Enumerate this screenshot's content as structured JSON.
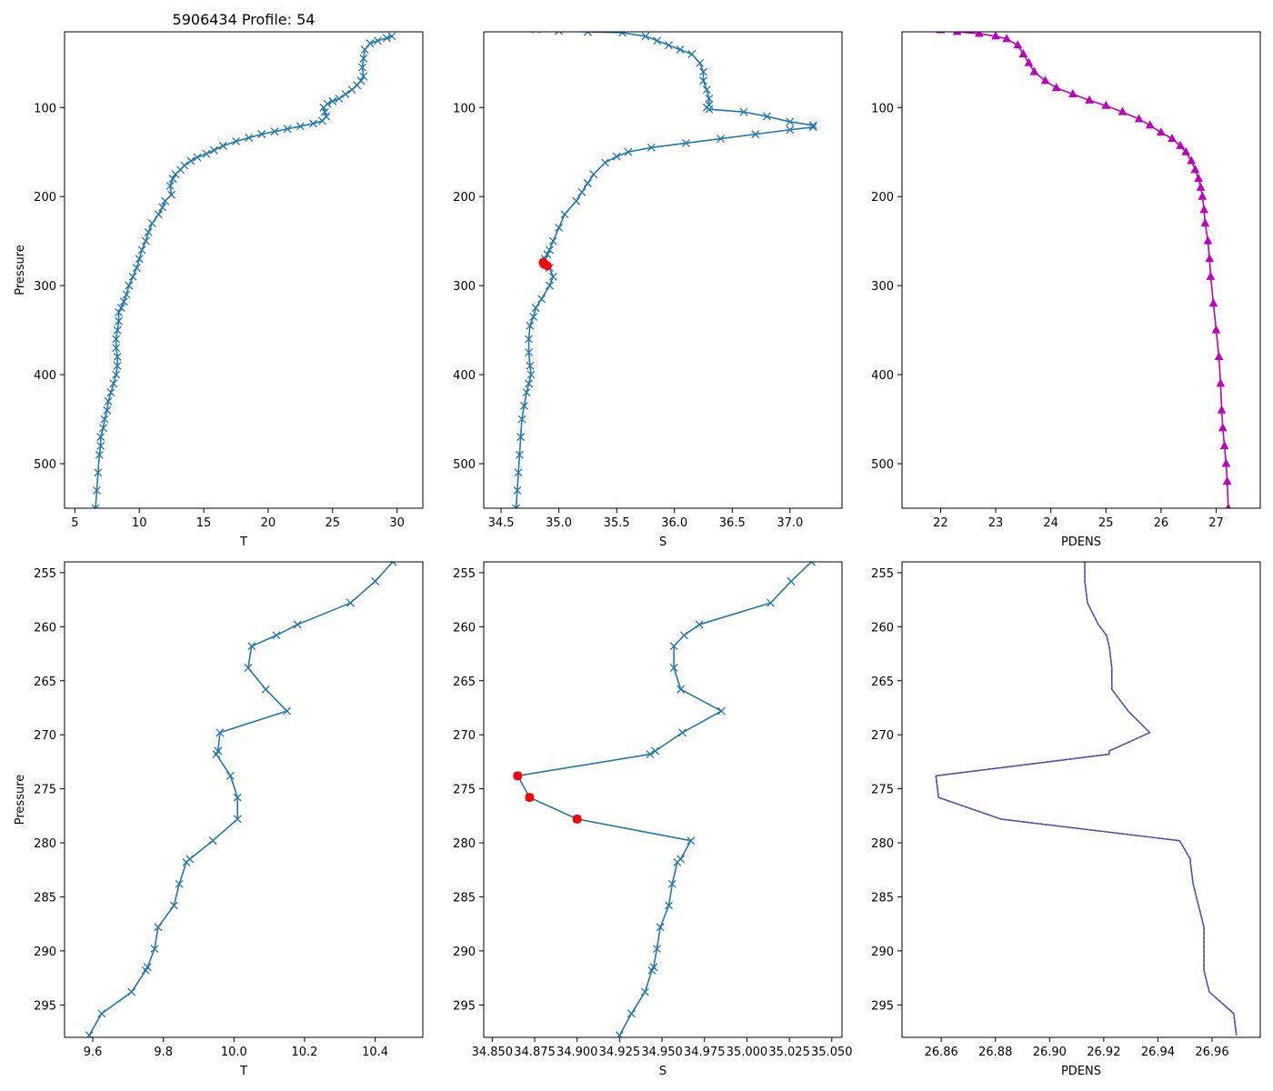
{
  "figure_title": "5906434 Profile: 54",
  "colors": {
    "line": "#1f77b4",
    "flag": "#ff0000",
    "density": "#bf00bf"
  },
  "chart_data": [
    {
      "id": "top-temperature",
      "type": "line",
      "xlabel": "T",
      "ylabel": "Pressure",
      "xlim": [
        4.2,
        32.0
      ],
      "ylim": [
        550,
        15
      ],
      "y_inverted": true,
      "xticks": [
        5,
        10,
        15,
        20,
        25,
        30
      ],
      "yticks": [
        100,
        200,
        300,
        400,
        500
      ],
      "marker": "x",
      "marker_color": "line",
      "series": [
        {
          "name": "T",
          "x": [
            29.6,
            29.2,
            28.5,
            27.9,
            27.5,
            27.4,
            27.3,
            27.4,
            27.2,
            26.9,
            26.5,
            26.0,
            25.5,
            25.0,
            24.6,
            24.3,
            24.4,
            24.5,
            24.2,
            23.5,
            22.5,
            21.5,
            20.5,
            19.5,
            18.5,
            17.5,
            16.5,
            15.8,
            15.2,
            14.5,
            14.0,
            13.5,
            13.2,
            12.8,
            12.6,
            12.4,
            12.5,
            12.0,
            11.8,
            11.5,
            11.0,
            10.7,
            10.5,
            10.2,
            10.0,
            9.8,
            9.5,
            9.2,
            9.0,
            8.8,
            8.6,
            8.4,
            8.4,
            8.3,
            8.2,
            8.2,
            8.3,
            8.3,
            8.2,
            8.0,
            7.8,
            7.6,
            7.5,
            7.3,
            7.2,
            7.0,
            7.0,
            6.9,
            6.8,
            6.7,
            6.6
          ],
          "y": [
            20,
            22,
            25,
            28,
            35,
            45,
            55,
            65,
            70,
            75,
            80,
            85,
            90,
            93,
            96,
            100,
            105,
            110,
            115,
            118,
            121,
            124,
            127,
            130,
            134,
            138,
            143,
            148,
            152,
            156,
            160,
            165,
            170,
            175,
            180,
            188,
            198,
            205,
            212,
            220,
            230,
            240,
            250,
            260,
            270,
            280,
            290,
            300,
            310,
            318,
            325,
            330,
            340,
            350,
            360,
            370,
            380,
            390,
            400,
            410,
            420,
            430,
            440,
            450,
            460,
            470,
            480,
            490,
            510,
            530,
            550
          ]
        }
      ]
    },
    {
      "id": "top-salinity",
      "type": "line",
      "xlabel": "S",
      "ylabel": "",
      "xlim": [
        34.35,
        37.45
      ],
      "ylim": [
        550,
        15
      ],
      "y_inverted": true,
      "xticks": [
        34.5,
        35.0,
        35.5,
        36.0,
        36.5,
        37.0
      ],
      "xtick_labels": [
        "34.5",
        "35.0",
        "35.5",
        "36.0",
        "36.5",
        "37.0"
      ],
      "yticks": [
        100,
        200,
        300,
        400,
        500
      ],
      "marker": "x",
      "marker_color": "line",
      "series": [
        {
          "name": "S",
          "x": [
            34.8,
            35.0,
            35.25,
            35.55,
            35.75,
            35.85,
            35.95,
            36.05,
            36.15,
            36.22,
            36.25,
            36.25,
            36.28,
            36.3,
            36.3,
            36.28,
            36.3,
            36.6,
            36.8,
            37.0,
            37.2,
            37.2,
            37.0,
            36.7,
            36.4,
            36.1,
            35.8,
            35.6,
            35.5,
            35.4,
            35.3,
            35.25,
            35.2,
            35.15,
            35.05,
            35.0,
            34.95,
            34.92,
            34.9,
            34.88,
            34.92,
            34.95,
            34.92,
            34.85,
            34.8,
            34.78,
            34.75,
            34.74,
            34.74,
            34.75,
            34.76,
            34.74,
            34.72,
            34.7,
            34.68,
            34.67,
            34.66,
            34.65,
            34.64,
            34.63
          ],
          "y": [
            12,
            14,
            15,
            16,
            20,
            25,
            30,
            35,
            40,
            50,
            60,
            70,
            80,
            90,
            97,
            100,
            102,
            105,
            110,
            116,
            120,
            122,
            125,
            130,
            135,
            140,
            145,
            150,
            155,
            162,
            175,
            185,
            195,
            205,
            220,
            235,
            250,
            260,
            265,
            270,
            280,
            290,
            300,
            315,
            325,
            335,
            345,
            360,
            375,
            390,
            400,
            410,
            420,
            435,
            450,
            470,
            490,
            510,
            530,
            550
          ]
        },
        {
          "name": "flagged",
          "marker": "o",
          "marker_color": "flag",
          "x": [
            34.865,
            34.872,
            34.9
          ],
          "y": [
            273.8,
            275.8,
            277.8
          ]
        }
      ]
    },
    {
      "id": "top-density",
      "type": "line",
      "xlabel": "PDENS",
      "ylabel": "",
      "xlim": [
        21.3,
        27.8
      ],
      "ylim": [
        550,
        15
      ],
      "y_inverted": true,
      "xticks": [
        22,
        23,
        24,
        25,
        26,
        27
      ],
      "yticks": [
        100,
        200,
        300,
        400,
        500
      ],
      "marker": "^",
      "marker_color": "density",
      "line_color": "density",
      "series": [
        {
          "name": "PDENS",
          "x": [
            21.8,
            22.0,
            22.3,
            22.7,
            23.0,
            23.2,
            23.4,
            23.5,
            23.6,
            23.7,
            23.9,
            24.1,
            24.4,
            24.7,
            25.0,
            25.3,
            25.6,
            25.8,
            26.0,
            26.2,
            26.35,
            26.45,
            26.55,
            26.62,
            26.68,
            26.72,
            26.75,
            26.78,
            26.8,
            26.85,
            26.88,
            26.9,
            26.95,
            27.0,
            27.05,
            27.08,
            27.1,
            27.12,
            27.15,
            27.18,
            27.2,
            27.22
          ],
          "y": [
            12,
            13,
            15,
            17,
            20,
            23,
            30,
            40,
            50,
            60,
            70,
            78,
            85,
            92,
            98,
            105,
            113,
            120,
            128,
            135,
            143,
            150,
            160,
            170,
            180,
            190,
            200,
            215,
            230,
            250,
            270,
            290,
            320,
            350,
            380,
            410,
            440,
            460,
            480,
            500,
            520,
            550
          ]
        }
      ]
    },
    {
      "id": "bottom-temperature",
      "type": "line",
      "xlabel": "T",
      "ylabel": "Pressure",
      "xlim": [
        9.52,
        10.535
      ],
      "ylim": [
        298,
        254
      ],
      "y_inverted": true,
      "xticks": [
        9.6,
        9.8,
        10.0,
        10.2,
        10.4
      ],
      "xtick_labels": [
        "9.6",
        "9.8",
        "10.0",
        "10.2",
        "10.4"
      ],
      "yticks": [
        255,
        260,
        265,
        270,
        275,
        280,
        285,
        290,
        295
      ],
      "marker": "x",
      "marker_color": "line",
      "series": [
        {
          "name": "T",
          "x": [
            10.45,
            10.4,
            10.33,
            10.18,
            10.12,
            10.05,
            10.04,
            10.09,
            10.15,
            9.96,
            9.955,
            9.95,
            9.99,
            10.01,
            10.01,
            9.94,
            9.875,
            9.865,
            9.845,
            9.83,
            9.785,
            9.775,
            9.755,
            9.75,
            9.71,
            9.625,
            9.59
          ],
          "y": [
            254.0,
            255.8,
            257.8,
            259.8,
            260.8,
            261.8,
            263.8,
            265.8,
            267.8,
            269.8,
            271.5,
            271.8,
            273.8,
            275.8,
            277.8,
            279.8,
            281.5,
            281.8,
            283.8,
            285.8,
            287.8,
            289.8,
            291.5,
            291.8,
            293.8,
            295.8,
            297.8
          ]
        }
      ]
    },
    {
      "id": "bottom-salinity",
      "type": "line",
      "xlabel": "S",
      "ylabel": "",
      "xlim": [
        34.845,
        35.056
      ],
      "ylim": [
        298,
        254
      ],
      "y_inverted": true,
      "xticks": [
        34.85,
        34.875,
        34.9,
        34.925,
        34.95,
        34.975,
        35.0,
        35.025,
        35.05
      ],
      "xtick_labels": [
        "34.850",
        "34.875",
        "34.900",
        "34.925",
        "34.950",
        "34.975",
        "35.000",
        "35.025",
        "35.050"
      ],
      "yticks": [
        255,
        260,
        265,
        270,
        275,
        280,
        285,
        290,
        295
      ],
      "marker": "x",
      "marker_color": "line",
      "series": [
        {
          "name": "S",
          "x": [
            35.038,
            35.026,
            35.014,
            34.972,
            34.963,
            34.957,
            34.957,
            34.961,
            34.985,
            34.962,
            34.946,
            34.943,
            34.865,
            34.872,
            34.9,
            34.967,
            34.961,
            34.959,
            34.956,
            34.954,
            34.949,
            34.947,
            34.945,
            34.944,
            34.94,
            34.932,
            34.925
          ],
          "y": [
            254.0,
            255.8,
            257.8,
            259.8,
            260.8,
            261.8,
            263.8,
            265.8,
            267.8,
            269.8,
            271.5,
            271.8,
            273.8,
            275.8,
            277.8,
            279.8,
            281.5,
            281.8,
            283.8,
            285.8,
            287.8,
            289.8,
            291.5,
            291.8,
            293.8,
            295.8,
            297.8
          ]
        },
        {
          "name": "flagged",
          "marker": "o",
          "marker_color": "flag",
          "x": [
            34.865,
            34.872,
            34.9
          ],
          "y": [
            273.8,
            275.8,
            277.8
          ]
        }
      ]
    },
    {
      "id": "bottom-density",
      "type": "line",
      "xlabel": "PDENS",
      "ylabel": "",
      "xlim": [
        26.8455,
        26.9778
      ],
      "ylim": [
        298,
        254
      ],
      "y_inverted": true,
      "xticks": [
        26.86,
        26.88,
        26.9,
        26.92,
        26.94,
        26.96
      ],
      "xtick_labels": [
        "26.86",
        "26.88",
        "26.90",
        "26.92",
        "26.94",
        "26.96"
      ],
      "yticks": [
        255,
        260,
        265,
        270,
        275,
        280,
        285,
        290,
        295
      ],
      "marker": "none",
      "overlay_color": "density",
      "series": [
        {
          "name": "PDENS",
          "x": [
            26.913,
            26.913,
            26.914,
            26.918,
            26.921,
            26.922,
            26.923,
            26.923,
            26.929,
            26.937,
            26.922,
            26.922,
            26.858,
            26.859,
            26.882,
            26.948,
            26.952,
            26.952,
            26.953,
            26.955,
            26.957,
            26.957,
            26.957,
            26.957,
            26.959,
            26.968,
            26.969
          ],
          "y": [
            254.0,
            255.8,
            257.8,
            259.8,
            260.8,
            261.8,
            263.8,
            265.8,
            267.8,
            269.8,
            271.5,
            271.8,
            273.8,
            275.8,
            277.8,
            279.8,
            281.5,
            281.8,
            283.8,
            285.8,
            287.8,
            289.8,
            291.5,
            291.8,
            293.8,
            295.8,
            297.8
          ]
        }
      ]
    }
  ]
}
